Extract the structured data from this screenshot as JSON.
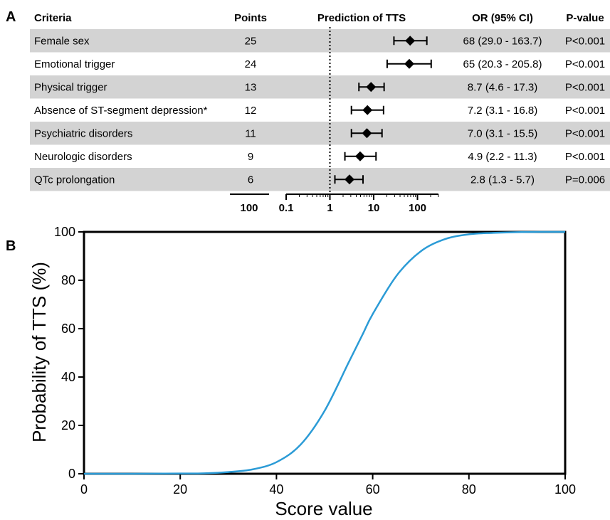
{
  "chart_data": [
    {
      "type": "table",
      "panel_label": "A",
      "headers": {
        "criteria": "Criteria",
        "points": "Points",
        "prediction": "Prediction of TTS",
        "or": "OR (95% CI)",
        "pvalue": "P-value"
      },
      "rows": [
        {
          "criteria": "Female sex",
          "points": 25,
          "or_text": "68 (29.0 - 163.7)",
          "p": "P<0.001",
          "or": 68,
          "lo": 29.0,
          "hi": 163.7,
          "shaded": true
        },
        {
          "criteria": "Emotional trigger",
          "points": 24,
          "or_text": "65 (20.3 - 205.8)",
          "p": "P<0.001",
          "or": 65,
          "lo": 20.3,
          "hi": 205.8,
          "shaded": false
        },
        {
          "criteria": "Physical trigger",
          "points": 13,
          "or_text": "8.7 (4.6 - 17.3)",
          "p": "P<0.001",
          "or": 8.7,
          "lo": 4.6,
          "hi": 17.3,
          "shaded": true
        },
        {
          "criteria": "Absence of ST-segment depression*",
          "points": 12,
          "or_text": "7.2 (3.1 - 16.8)",
          "p": "P<0.001",
          "or": 7.2,
          "lo": 3.1,
          "hi": 16.8,
          "shaded": false
        },
        {
          "criteria": "Psychiatric disorders",
          "points": 11,
          "or_text": "7.0 (3.1 - 15.5)",
          "p": "P<0.001",
          "or": 7.0,
          "lo": 3.1,
          "hi": 15.5,
          "shaded": true
        },
        {
          "criteria": "Neurologic disorders",
          "points": 9,
          "or_text": "4.9 (2.2 - 11.3)",
          "p": "P<0.001",
          "or": 4.9,
          "lo": 2.2,
          "hi": 11.3,
          "shaded": false
        },
        {
          "criteria": "QTc prolongation",
          "points": 6,
          "or_text": "2.8 (1.3 - 5.7)",
          "p": "P=0.006",
          "or": 2.8,
          "lo": 1.3,
          "hi": 5.7,
          "shaded": true
        }
      ],
      "points_axis_label": "100",
      "forest_axis": {
        "scale": "log",
        "range": [
          0.1,
          300
        ],
        "reference_line": 1,
        "ticks": [
          "0.1",
          "1",
          "10",
          "100"
        ]
      },
      "row_shade_color": "#d3d3d3"
    },
    {
      "type": "line",
      "panel_label": "B",
      "xlabel": "Score value",
      "ylabel": "Probability of TTS (%)",
      "xlim": [
        0,
        100
      ],
      "ylim": [
        0,
        100
      ],
      "xticks": [
        0,
        20,
        40,
        60,
        80,
        100
      ],
      "yticks": [
        0,
        20,
        40,
        60,
        80,
        100
      ],
      "grid": false,
      "series": [
        {
          "color": "#2b9bd6",
          "x": [
            0,
            10,
            20,
            25,
            30,
            35,
            40,
            45,
            50,
            55,
            58,
            60,
            65,
            70,
            75,
            80,
            85,
            90,
            95,
            100
          ],
          "y": [
            0,
            0,
            0.1,
            0.2,
            0.7,
            1.8,
            4.8,
            12,
            26,
            46,
            58,
            66,
            82,
            92,
            97,
            99,
            99.6,
            99.9,
            100,
            100
          ]
        }
      ]
    }
  ]
}
